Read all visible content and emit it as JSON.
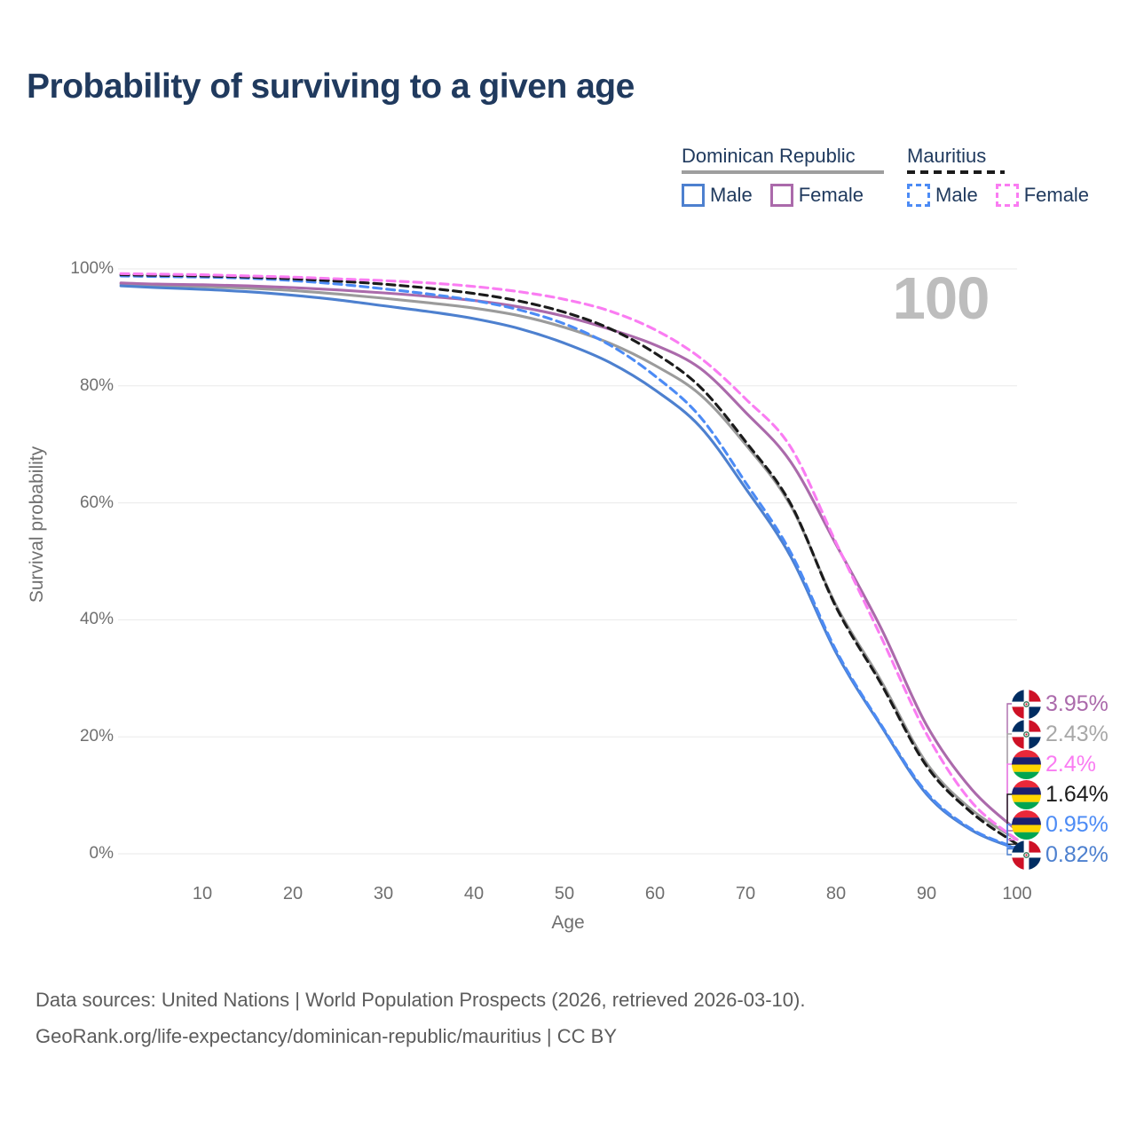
{
  "title": "Probability of surviving to a given age",
  "watermark_age": "100",
  "legend": {
    "groups": [
      {
        "label": "Dominican Republic",
        "line_style": "solid",
        "items": [
          {
            "label": "Male",
            "color": "#4d80cf",
            "style": "solid"
          },
          {
            "label": "Female",
            "color": "#ab6aab",
            "style": "solid"
          }
        ]
      },
      {
        "label": "Mauritius",
        "line_style": "dashed",
        "items": [
          {
            "label": "Male",
            "color": "#4c8bf5",
            "style": "dashed"
          },
          {
            "label": "Female",
            "color": "#fa7cf2",
            "style": "dashed"
          }
        ]
      }
    ]
  },
  "chart_data": {
    "type": "line",
    "title": "Probability of surviving to a given age",
    "xlabel": "Age",
    "ylabel": "Survival probability",
    "xlim": [
      0,
      100
    ],
    "ylim": [
      0,
      100
    ],
    "grid": "horizontal",
    "x": [
      1,
      5,
      10,
      15,
      20,
      25,
      30,
      35,
      40,
      45,
      50,
      55,
      60,
      65,
      70,
      75,
      80,
      85,
      90,
      95,
      100
    ],
    "x_ticks": [
      10,
      20,
      30,
      40,
      50,
      60,
      70,
      80,
      90,
      100
    ],
    "y_ticks": [
      {
        "value": 0,
        "label": "0%"
      },
      {
        "value": 20,
        "label": "20%"
      },
      {
        "value": 40,
        "label": "40%"
      },
      {
        "value": 60,
        "label": "60%"
      },
      {
        "value": 80,
        "label": "80%"
      },
      {
        "value": 100,
        "label": "100%"
      }
    ],
    "series": [
      {
        "name": "Dominican Republic Both sexes",
        "color": "#9b9b9b",
        "dash": "solid",
        "values": [
          97.4,
          97.2,
          97.0,
          96.7,
          96.3,
          95.7,
          95.0,
          94.2,
          93.3,
          92.0,
          90.0,
          87.3,
          83.5,
          78.5,
          70.0,
          59.5,
          42.5,
          29.5,
          15.5,
          7.5,
          2.43
        ]
      },
      {
        "name": "Dominican Republic Male",
        "color": "#4d80cf",
        "dash": "solid",
        "values": [
          97.1,
          96.8,
          96.5,
          96.1,
          95.5,
          94.7,
          93.7,
          92.7,
          91.5,
          89.8,
          87.3,
          84.0,
          79.3,
          73.0,
          62.5,
          50.8,
          34.4,
          21.8,
          10.2,
          4.0,
          0.82
        ]
      },
      {
        "name": "Dominican Republic Female",
        "color": "#ab6aab",
        "dash": "solid",
        "values": [
          97.6,
          97.4,
          97.3,
          97.1,
          96.8,
          96.4,
          95.9,
          95.3,
          94.6,
          93.5,
          91.9,
          89.7,
          87.0,
          83.0,
          75.5,
          67.0,
          52.9,
          38.5,
          22.0,
          11.0,
          3.95
        ]
      },
      {
        "name": "Mauritius Male",
        "color": "#4c8bf5",
        "dash": "dashed",
        "values": [
          98.8,
          98.7,
          98.6,
          98.4,
          98.0,
          97.4,
          96.6,
          95.7,
          94.6,
          93.0,
          90.6,
          87.0,
          81.7,
          74.7,
          63.5,
          51.5,
          34.8,
          22.0,
          10.5,
          4.2,
          0.95
        ]
      },
      {
        "name": "Mauritius Both sexes",
        "color": "#1b1b1b",
        "dash": "dashed",
        "values": [
          99.0,
          98.9,
          98.8,
          98.6,
          98.3,
          97.9,
          97.4,
          96.7,
          95.8,
          94.5,
          92.6,
          89.8,
          85.6,
          79.8,
          70.5,
          59.8,
          42.2,
          29.0,
          15.0,
          7.0,
          1.64
        ]
      },
      {
        "name": "Mauritius Female",
        "color": "#fa7cf2",
        "dash": "dashed",
        "values": [
          99.2,
          99.1,
          99.0,
          98.8,
          98.6,
          98.3,
          98.0,
          97.6,
          97.0,
          96.1,
          94.8,
          92.8,
          89.6,
          84.8,
          77.8,
          69.5,
          53.2,
          37.0,
          20.5,
          8.8,
          2.4
        ]
      }
    ],
    "legend_position": "top-right",
    "hover_age": "100"
  },
  "end_labels": [
    {
      "value": "3.95%",
      "series": "Dominican Republic Female",
      "flag": "dominican-republic",
      "color": "#ab6aab"
    },
    {
      "value": "2.43%",
      "series": "Dominican Republic Both sexes",
      "flag": "dominican-republic",
      "color": "#a8a8a8"
    },
    {
      "value": "2.4%",
      "series": "Mauritius Female",
      "flag": "mauritius",
      "color": "#fa7cf2"
    },
    {
      "value": "1.64%",
      "series": "Mauritius Both sexes",
      "flag": "mauritius",
      "color": "#1b1b1b"
    },
    {
      "value": "0.95%",
      "series": "Mauritius Male",
      "flag": "mauritius",
      "color": "#4c8bf5"
    },
    {
      "value": "0.82%",
      "series": "Dominican Republic Male",
      "flag": "dominican-republic",
      "color": "#4d80cf"
    }
  ],
  "flags": {
    "dominican-republic": {
      "blue": "#002d62",
      "red": "#ce1126",
      "white": "#ffffff",
      "emblem": "#2f6d4f"
    },
    "mauritius": {
      "stripes": [
        "#ea2839",
        "#1a206d",
        "#ffd500",
        "#00a551"
      ]
    }
  },
  "colors": {
    "title": "#203a5e",
    "axis_text": "#6f6f6f",
    "gridline": "#eaeaea",
    "watermark": "#bdbdbd",
    "footer": "#5c5c5c"
  },
  "footer": {
    "line1": "Data sources: United Nations | World Population Prospects (2026, retrieved 2026-03-10).",
    "line2": "GeoRank.org/life-expectancy/dominican-republic/mauritius | CC BY"
  }
}
